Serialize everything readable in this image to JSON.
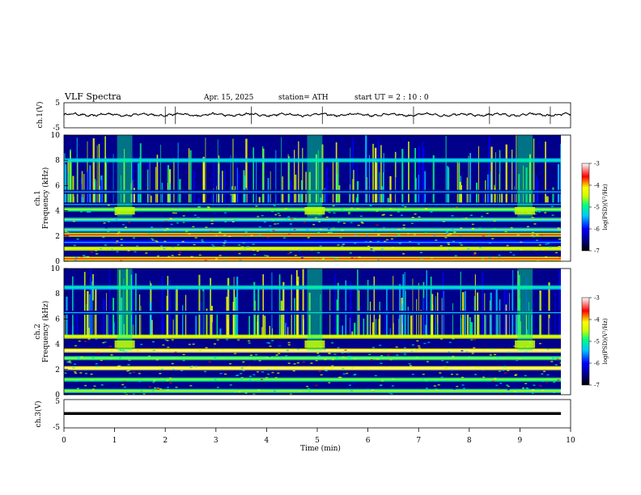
{
  "header": {
    "title": "VLF  Spectra",
    "date": "Apr. 15, 2025",
    "station": "station= ATH",
    "start_ut": "start  UT  =    2  : 10 : 0"
  },
  "colors": {
    "scale": [
      "#000000",
      "#00008b",
      "#0000ff",
      "#00c8ff",
      "#00ff80",
      "#c8ff00",
      "#ffff00",
      "#ff0000",
      "#ffffff"
    ]
  },
  "chart_data": [
    {
      "type": "line",
      "name": "ch1-waveform",
      "ylabel": "ch.1(V)",
      "yticks": [
        "5",
        "-5"
      ],
      "ylim": [
        -5,
        5
      ],
      "xlim": [
        0,
        10
      ],
      "mean_level_V": 0.2,
      "spikes_min": [
        2.0,
        2.2,
        3.7,
        5.1,
        6.9,
        8.4,
        9.6
      ]
    },
    {
      "type": "heatmap",
      "name": "ch1-spectrogram",
      "ylabel": "ch.1\nFrequency  (kHz)",
      "yticks": [
        "0",
        "2",
        "4",
        "6",
        "8",
        "10"
      ],
      "ylim": [
        0,
        10
      ],
      "xlim": [
        0,
        10
      ],
      "colorbar": {
        "label": "log(PSD)(V²/Hz)",
        "ticks": [
          "-3",
          "-4",
          "-5",
          "-6",
          "-7"
        ],
        "range": [
          -7,
          -3
        ]
      },
      "bands_kHz": [
        {
          "freq": 0.2,
          "level": -4.2
        },
        {
          "freq": 1.0,
          "level": -4.6
        },
        {
          "freq": 1.5,
          "level": -6.2
        },
        {
          "freq": 2.1,
          "level": -4.3
        },
        {
          "freq": 2.5,
          "level": -5.4
        },
        {
          "freq": 3.3,
          "level": -5.5
        },
        {
          "freq": 4.1,
          "level": -4.9
        },
        {
          "freq": 4.5,
          "level": -6.3
        },
        {
          "freq": 5.5,
          "level": -6.4
        },
        {
          "freq": 8.0,
          "level": -5.6
        }
      ],
      "bursts_min": [
        1.2,
        4.95,
        9.1
      ]
    },
    {
      "type": "heatmap",
      "name": "ch2-spectrogram",
      "ylabel": "ch.2\nFrequency  (kHz)",
      "yticks": [
        "0",
        "2",
        "4",
        "6",
        "8",
        "10"
      ],
      "ylim": [
        0,
        10
      ],
      "xlim": [
        0,
        10
      ],
      "colorbar": {
        "label": "log(PSD)(V²/Hz)",
        "ticks": [
          "-3",
          "-4",
          "-5",
          "-6",
          "-7"
        ],
        "range": [
          -7,
          -3
        ]
      },
      "bands_kHz": [
        {
          "freq": 0.3,
          "level": -4.8
        },
        {
          "freq": 1.2,
          "level": -5.2
        },
        {
          "freq": 2.1,
          "level": -3.9
        },
        {
          "freq": 2.9,
          "level": -5.0
        },
        {
          "freq": 3.5,
          "level": -3.8
        },
        {
          "freq": 4.6,
          "level": -4.6
        },
        {
          "freq": 6.5,
          "level": -6.4
        },
        {
          "freq": 8.5,
          "level": -5.7
        }
      ],
      "bursts_min": [
        1.2,
        4.95,
        9.1
      ]
    },
    {
      "type": "line",
      "name": "ch3-waveform",
      "ylabel": "ch.3(V)",
      "yticks": [
        "5",
        "-5"
      ],
      "ylim": [
        -5,
        5
      ],
      "xlim": [
        0,
        10
      ],
      "mean_level_V": 0.0
    }
  ],
  "xaxis": {
    "label": "Time  (min)",
    "ticks": [
      "0",
      "1",
      "2",
      "3",
      "4",
      "5",
      "6",
      "7",
      "8",
      "9",
      "10"
    ]
  }
}
